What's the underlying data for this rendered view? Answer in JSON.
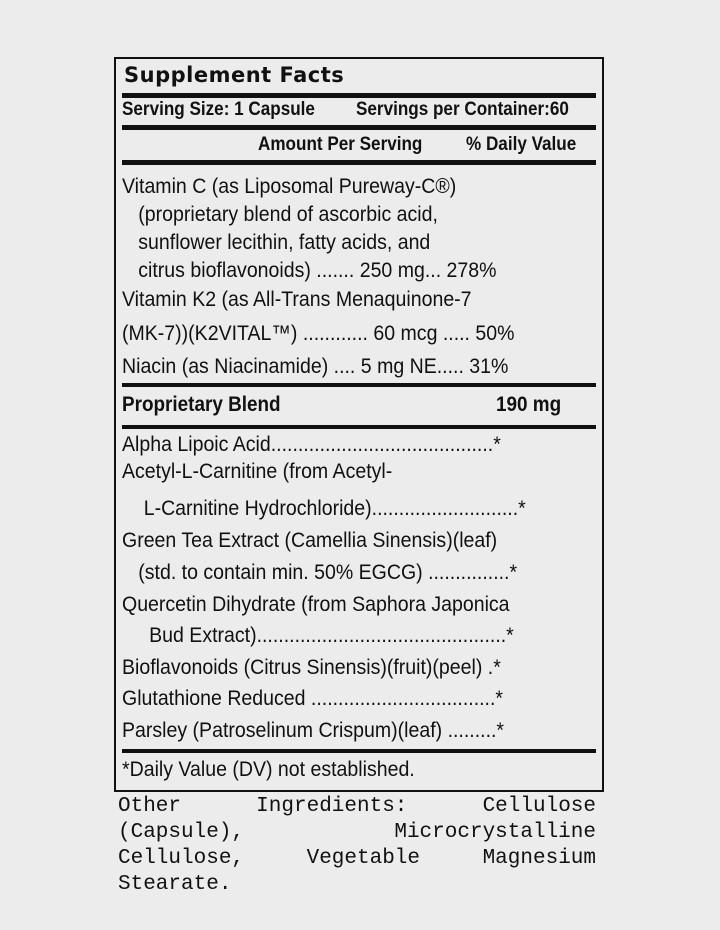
{
  "title": "Supplement Facts",
  "serving_size": "Serving Size: 1 Capsule",
  "servings_per_container": "Servings per Container:60",
  "amount_per_serving": "Amount Per Serving",
  "daily_value_header": "% Daily Value",
  "vitamins": [
    "Vitamin C (as Liposomal Pureway-C®)",
    "   (proprietary blend of ascorbic acid,",
    "   sunflower lecithin, fatty acids, and",
    "   citrus bioflavonoids) ....... 250 mg... 278%",
    "Vitamin K2 (as All-Trans Menaquinone-7",
    "(MK-7))(K2VITAL™) ............ 60 mcg ..... 50%",
    "Niacin (as Niacinamide) .... 5 mg NE..... 31%"
  ],
  "blend": {
    "label": "Proprietary Blend",
    "amount": "190 mg"
  },
  "blend_items": [
    "Alpha Lipoic Acid.........................................*",
    "Acetyl-L-Carnitine (from Acetyl-",
    "    L-Carnitine Hydrochloride)...........................*",
    "Green Tea Extract (Camellia Sinensis)(leaf)",
    "   (std. to contain min. 50% EGCG) ...............*",
    "Quercetin Dihydrate (from Saphora Japonica",
    "     Bud Extract)..............................................*",
    "Bioflavonoids (Citrus Sinensis)(fruit)(peel) .*",
    "Glutathione Reduced ..................................*",
    "Parsley (Patroselinum Crispum)(leaf) .........*"
  ],
  "footnote": "*Daily Value (DV) not established.",
  "other_ingredients": "Other Ingredients: Cellulose (Capsule), Microcrystalline Cellulose, Vegetable Magnesium Stearate."
}
